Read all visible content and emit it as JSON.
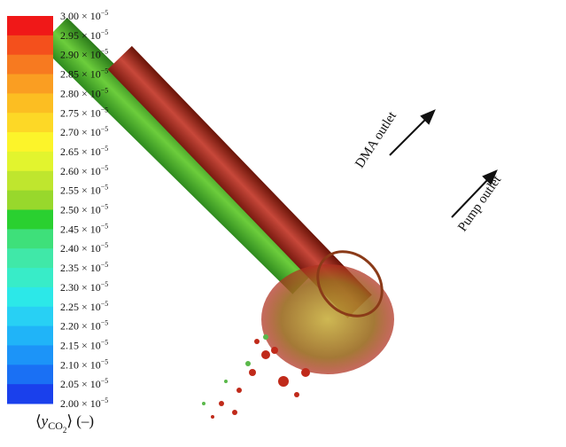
{
  "colorbar": {
    "mantissas": [
      "3.00",
      "2.95",
      "2.90",
      "2.85",
      "2.80",
      "2.75",
      "2.70",
      "2.65",
      "2.60",
      "2.55",
      "2.50",
      "2.45",
      "2.40",
      "2.35",
      "2.30",
      "2.25",
      "2.20",
      "2.15",
      "2.10",
      "2.05",
      "2.00"
    ],
    "base": "× 10",
    "exponent": "−5",
    "colors": [
      "#f01818",
      "#f4501c",
      "#f77a20",
      "#fa9e22",
      "#fcbe22",
      "#fdd826",
      "#fcf42a",
      "#e2f42e",
      "#bfe62e",
      "#98d82c",
      "#2ad030",
      "#3ee07a",
      "#40e8a8",
      "#38ecc8",
      "#2ce8e8",
      "#28d0f4",
      "#20b4f8",
      "#1c94f8",
      "#1a70f4",
      "#1a40ec"
    ],
    "label": {
      "open": "⟨",
      "symbol": "y",
      "sub": "CO",
      "subsub": "2",
      "close": "⟩ (–)"
    }
  },
  "annotations": {
    "dma": "DMA outlet",
    "pump": "Pump outlet"
  }
}
